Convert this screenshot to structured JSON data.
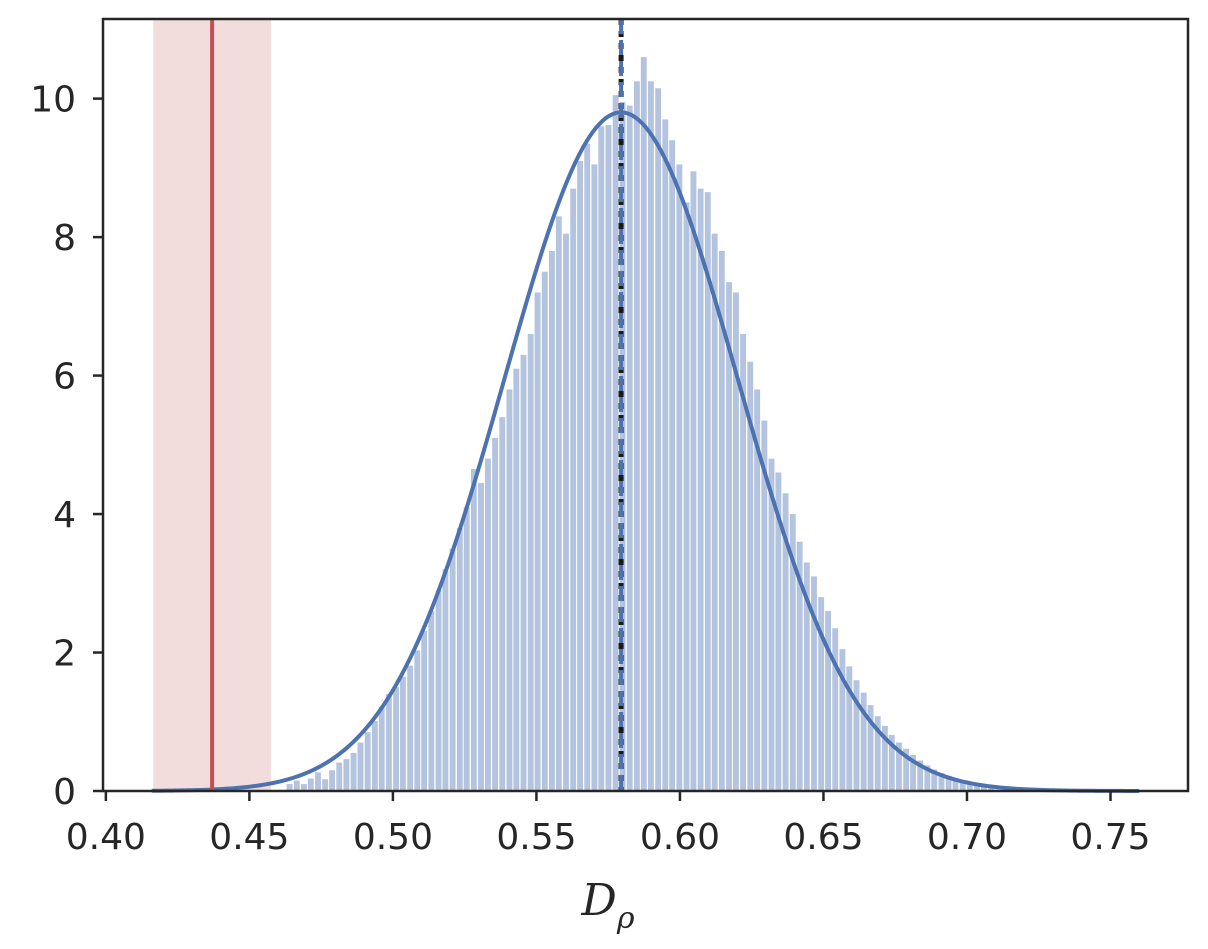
{
  "chart_data": {
    "type": "bar",
    "title": "",
    "xlabel": "D",
    "xlabel_subscript": "ρ",
    "ylabel": "",
    "xlim": [
      0.399,
      0.777
    ],
    "ylim": [
      0,
      11.15
    ],
    "grid": false,
    "xticks": [
      0.4,
      0.45,
      0.5,
      0.55,
      0.6,
      0.65,
      0.7,
      0.75
    ],
    "xtick_labels": [
      "0.40",
      "0.45",
      "0.50",
      "0.55",
      "0.60",
      "0.65",
      "0.70",
      "0.75"
    ],
    "yticks": [
      0,
      2,
      4,
      6,
      8,
      10
    ],
    "ytick_labels": [
      "0",
      "2",
      "4",
      "6",
      "8",
      "10"
    ],
    "histogram": {
      "bin_width": 0.00247,
      "color": "#4c72b0",
      "opacity": 0.42,
      "bins": [
        [
          0.464,
          0.1
        ],
        [
          0.4665,
          0.15
        ],
        [
          0.469,
          0.1
        ],
        [
          0.4714,
          0.18
        ],
        [
          0.4739,
          0.27
        ],
        [
          0.4764,
          0.17
        ],
        [
          0.4788,
          0.3
        ],
        [
          0.4813,
          0.41
        ],
        [
          0.4838,
          0.46
        ],
        [
          0.4863,
          0.55
        ],
        [
          0.4887,
          0.7
        ],
        [
          0.4912,
          0.85
        ],
        [
          0.4937,
          1.01
        ],
        [
          0.4961,
          1.22
        ],
        [
          0.4986,
          1.4
        ],
        [
          0.5011,
          1.5
        ],
        [
          0.5035,
          1.65
        ],
        [
          0.506,
          1.81
        ],
        [
          0.5085,
          2.03
        ],
        [
          0.5109,
          2.31
        ],
        [
          0.5134,
          2.6
        ],
        [
          0.5159,
          2.9
        ],
        [
          0.5183,
          3.2
        ],
        [
          0.5208,
          3.5
        ],
        [
          0.5233,
          3.8
        ],
        [
          0.5257,
          4.1
        ],
        [
          0.5282,
          4.65
        ],
        [
          0.5307,
          4.45
        ],
        [
          0.5331,
          4.8
        ],
        [
          0.5356,
          5.1
        ],
        [
          0.5381,
          5.4
        ],
        [
          0.5406,
          5.8
        ],
        [
          0.543,
          6.1
        ],
        [
          0.5455,
          6.3
        ],
        [
          0.548,
          6.6
        ],
        [
          0.5504,
          7.2
        ],
        [
          0.5529,
          7.5
        ],
        [
          0.5554,
          7.8
        ],
        [
          0.5578,
          8.3
        ],
        [
          0.5603,
          8.05
        ],
        [
          0.5628,
          8.7
        ],
        [
          0.5652,
          9.1
        ],
        [
          0.5677,
          9.35
        ],
        [
          0.5702,
          9.05
        ],
        [
          0.5726,
          9.6
        ],
        [
          0.5751,
          9.62
        ],
        [
          0.5776,
          10.05
        ],
        [
          0.58,
          9.95
        ],
        [
          0.5825,
          9.9
        ],
        [
          0.585,
          10.25
        ],
        [
          0.5874,
          10.6
        ],
        [
          0.5899,
          10.25
        ],
        [
          0.5924,
          10.15
        ],
        [
          0.5949,
          9.7
        ],
        [
          0.5973,
          9.4
        ],
        [
          0.5998,
          9.05
        ],
        [
          0.6023,
          8.5
        ],
        [
          0.6047,
          8.95
        ],
        [
          0.6072,
          8.7
        ],
        [
          0.6097,
          8.65
        ],
        [
          0.6121,
          8.05
        ],
        [
          0.6146,
          7.8
        ],
        [
          0.6171,
          7.35
        ],
        [
          0.6195,
          7.2
        ],
        [
          0.622,
          6.6
        ],
        [
          0.6245,
          6.2
        ],
        [
          0.6269,
          5.8
        ],
        [
          0.6294,
          5.35
        ],
        [
          0.6319,
          4.8
        ],
        [
          0.6343,
          4.6
        ],
        [
          0.6368,
          4.3
        ],
        [
          0.6393,
          4.0
        ],
        [
          0.6417,
          3.6
        ],
        [
          0.6442,
          3.3
        ],
        [
          0.6467,
          3.1
        ],
        [
          0.6492,
          2.8
        ],
        [
          0.6516,
          2.6
        ],
        [
          0.6541,
          2.35
        ],
        [
          0.6566,
          2.05
        ],
        [
          0.659,
          1.8
        ],
        [
          0.6615,
          1.6
        ],
        [
          0.664,
          1.42
        ],
        [
          0.6664,
          1.24
        ],
        [
          0.6689,
          1.08
        ],
        [
          0.6714,
          0.94
        ],
        [
          0.6738,
          0.81
        ],
        [
          0.6763,
          0.7
        ],
        [
          0.6788,
          0.61
        ],
        [
          0.6812,
          0.52
        ],
        [
          0.6837,
          0.44
        ],
        [
          0.6862,
          0.37
        ],
        [
          0.6886,
          0.31
        ],
        [
          0.6911,
          0.26
        ],
        [
          0.6936,
          0.22
        ],
        [
          0.696,
          0.18
        ],
        [
          0.6985,
          0.14
        ],
        [
          0.701,
          0.11
        ],
        [
          0.7035,
          0.08
        ],
        [
          0.7059,
          0.06
        ],
        [
          0.7084,
          0.05
        ]
      ]
    },
    "density_curve": {
      "mean": 0.5795,
      "sd": 0.0407,
      "x_range": [
        0.416,
        0.76
      ],
      "color": "#4c72b0"
    },
    "vertical_lines": [
      {
        "x": 0.437,
        "color": "#c44e52",
        "style": "solid"
      },
      {
        "x": 0.5795,
        "color": "#1a1a1a",
        "style": "dotted"
      },
      {
        "x": 0.5795,
        "color": "#4c72b0",
        "style": "dashed"
      }
    ],
    "shaded_region": {
      "x_range": [
        0.4165,
        0.4575
      ],
      "color": "#c44e52",
      "opacity": 0.2
    }
  }
}
